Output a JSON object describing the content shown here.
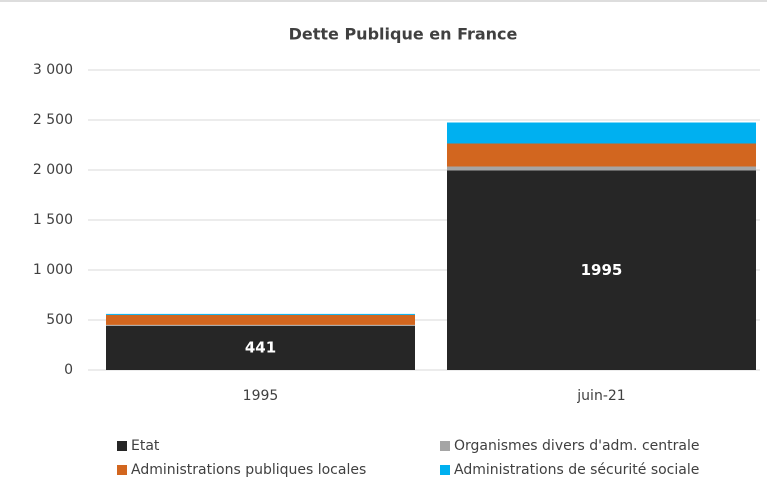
{
  "chart_data": {
    "type": "stacked_bar",
    "title": "Dette Publique en France",
    "categories": [
      "1995",
      "juin-21"
    ],
    "series": [
      {
        "name": "Etat",
        "color": "#262626",
        "values": [
          441,
          1995
        ],
        "data_labels": true
      },
      {
        "name": "Organismes divers d'adm. centrale",
        "color": "#a5a5a5",
        "values": [
          10,
          40
        ]
      },
      {
        "name": "Administrations publiques locales",
        "color": "#d2661f",
        "values": [
          100,
          230
        ]
      },
      {
        "name": "Administrations de sécurité sociale",
        "color": "#00b0f0",
        "values": [
          10,
          210
        ]
      }
    ],
    "ylim": [
      0,
      3000
    ],
    "yticks": [
      0,
      500,
      {
        "value": 1000,
        "label": "1 000"
      },
      {
        "value": 1500,
        "label": "1 500"
      },
      {
        "value": 2000,
        "label": "2 000"
      },
      {
        "value": 2500,
        "label": "2 500"
      },
      {
        "value": 3000,
        "label": "3 000"
      }
    ],
    "grid": true,
    "legend": "bottom"
  }
}
